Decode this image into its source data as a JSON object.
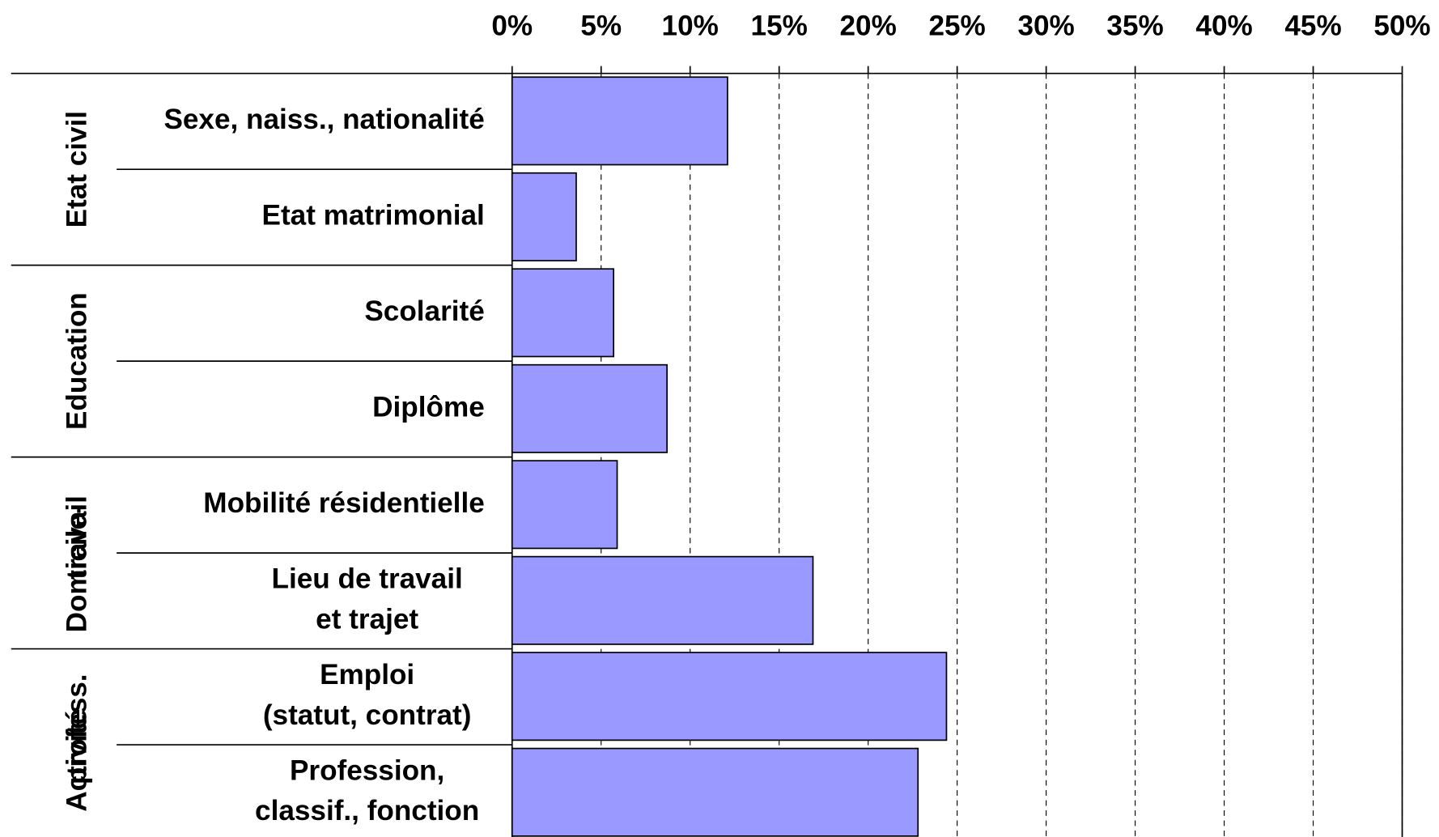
{
  "chart_data": {
    "type": "bar",
    "orientation": "horizontal",
    "color": "#9999ff",
    "grid": true,
    "xlim": [
      0,
      50
    ],
    "xticks": [
      {
        "value": 0,
        "label": "0%"
      },
      {
        "value": 5,
        "label": "5%"
      },
      {
        "value": 10,
        "label": "10%"
      },
      {
        "value": 15,
        "label": "15%"
      },
      {
        "value": 20,
        "label": "20%"
      },
      {
        "value": 25,
        "label": "25%"
      },
      {
        "value": 30,
        "label": "30%"
      },
      {
        "value": 35,
        "label": "35%"
      },
      {
        "value": 40,
        "label": "40%"
      },
      {
        "value": 45,
        "label": "45%"
      },
      {
        "value": 50,
        "label": "50%"
      }
    ],
    "groups": [
      {
        "label": "Etat civil",
        "categories": [
          "Sexe, naiss., nationalité",
          "Etat matrimonial"
        ],
        "values": [
          12.1,
          3.6
        ]
      },
      {
        "label": "Education",
        "categories": [
          "Scolarité",
          "Diplôme"
        ],
        "values": [
          5.7,
          8.7
        ]
      },
      {
        "label": "Domicile-\ntravail",
        "categories": [
          "Mobilité résidentielle",
          "Lieu de travail\net trajet"
        ],
        "values": [
          5.9,
          16.9
        ]
      },
      {
        "label": "Activité\nprofess.",
        "categories": [
          "Emploi\n(statut, contrat)",
          "Profession,\nclassif., fonction"
        ],
        "values": [
          24.4,
          22.8
        ]
      }
    ]
  }
}
